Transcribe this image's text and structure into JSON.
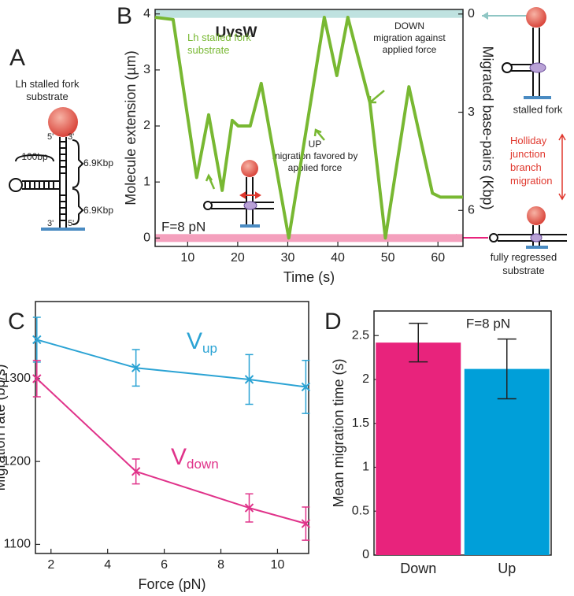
{
  "panels": {
    "labels": [
      "A",
      "B",
      "C",
      "D"
    ]
  },
  "diagram_a": {
    "title": [
      "Lh stalled fork",
      "substrate"
    ],
    "ends_top": [
      "5'",
      "3'"
    ],
    "arm": "100bp",
    "lengths": [
      "6.9Kbp",
      "6.9Kbp"
    ],
    "ends_bottom": [
      "3'",
      "5'"
    ]
  },
  "diagram_b": {
    "top": "stalled fork",
    "middle": [
      "Holliday",
      "junction",
      "branch",
      "migration"
    ],
    "bottom": [
      "fully regressed",
      "substrate"
    ]
  },
  "chart_data": [
    {
      "type": "line",
      "title": "UvsW",
      "xlabel": "Time (s)",
      "ylabel": "Molecule extension (µm)",
      "y2label": "Migrated base-pairs (Kbp)",
      "xlim": [
        3.5,
        65
      ],
      "xticks": [
        10,
        20,
        30,
        40,
        50,
        60
      ],
      "ylim": [
        -0.15,
        4.08
      ],
      "yticks": [
        0,
        1,
        2,
        3,
        4
      ],
      "y2lim": [
        7.1,
        -0.14
      ],
      "y2ticks": [
        0,
        3,
        6
      ],
      "x": [
        3.5,
        7.1,
        11.8,
        14.2,
        16.9,
        18.9,
        20.1,
        22.5,
        24.7,
        26,
        30.2,
        37.3,
        39.8,
        42,
        46.4,
        49.5,
        54.2,
        58.9,
        60.5,
        65
      ],
      "series": [
        {
          "name": "Lh stalled fork substrate",
          "color": "#78b832",
          "values": [
            3.94,
            3.9,
            1.08,
            2.2,
            0.85,
            2.1,
            2.0,
            2.0,
            2.76,
            2.1,
            0,
            3.94,
            2.9,
            3.94,
            2.42,
            0,
            2.7,
            0.8,
            0.73,
            0.73
          ]
        }
      ],
      "bands": [
        {
          "value": 4,
          "color": "#bfe2e0"
        },
        {
          "value": 0,
          "color": "#f4a0bd"
        }
      ],
      "annotations": [
        {
          "text": [
            "UP",
            "migration favored by",
            "applied force"
          ]
        },
        {
          "text": [
            "DOWN",
            "migration against",
            "applied force"
          ]
        },
        {
          "text": "F=8 pN"
        }
      ]
    },
    {
      "type": "line",
      "xlabel": "Force (pN)",
      "ylabel": "Migration rate (bp/s)",
      "xlim": [
        1.45,
        11.1
      ],
      "xticks": [
        2,
        4,
        6,
        8,
        10
      ],
      "ylim": [
        1089,
        1393
      ],
      "yticks": [
        1100,
        1200,
        1300
      ],
      "x": [
        1.5,
        5,
        9,
        11
      ],
      "markers": "x",
      "series": [
        {
          "name": "V",
          "subscript": "up",
          "color": "#2ba3d4",
          "values": [
            1347,
            1313,
            1299,
            1290
          ],
          "errors": [
            27,
            22,
            30,
            32
          ]
        },
        {
          "name": "V",
          "subscript": "down",
          "color": "#e0338a",
          "values": [
            1300,
            1188,
            1144,
            1125
          ],
          "errors": [
            22,
            15,
            17,
            20
          ]
        }
      ]
    },
    {
      "type": "bar",
      "ylabel": "Mean migration time (s)",
      "ylim": [
        0,
        2.78
      ],
      "yticks": [
        0,
        0.5,
        1,
        1.5,
        2,
        2.5
      ],
      "categories": [
        "Down",
        "Up"
      ],
      "values": [
        2.42,
        2.12
      ],
      "errors": [
        0.22,
        0.34
      ],
      "colors": [
        "#e8237c",
        "#009fd9"
      ],
      "annotations": [
        {
          "text": "F=8 pN"
        }
      ]
    }
  ]
}
